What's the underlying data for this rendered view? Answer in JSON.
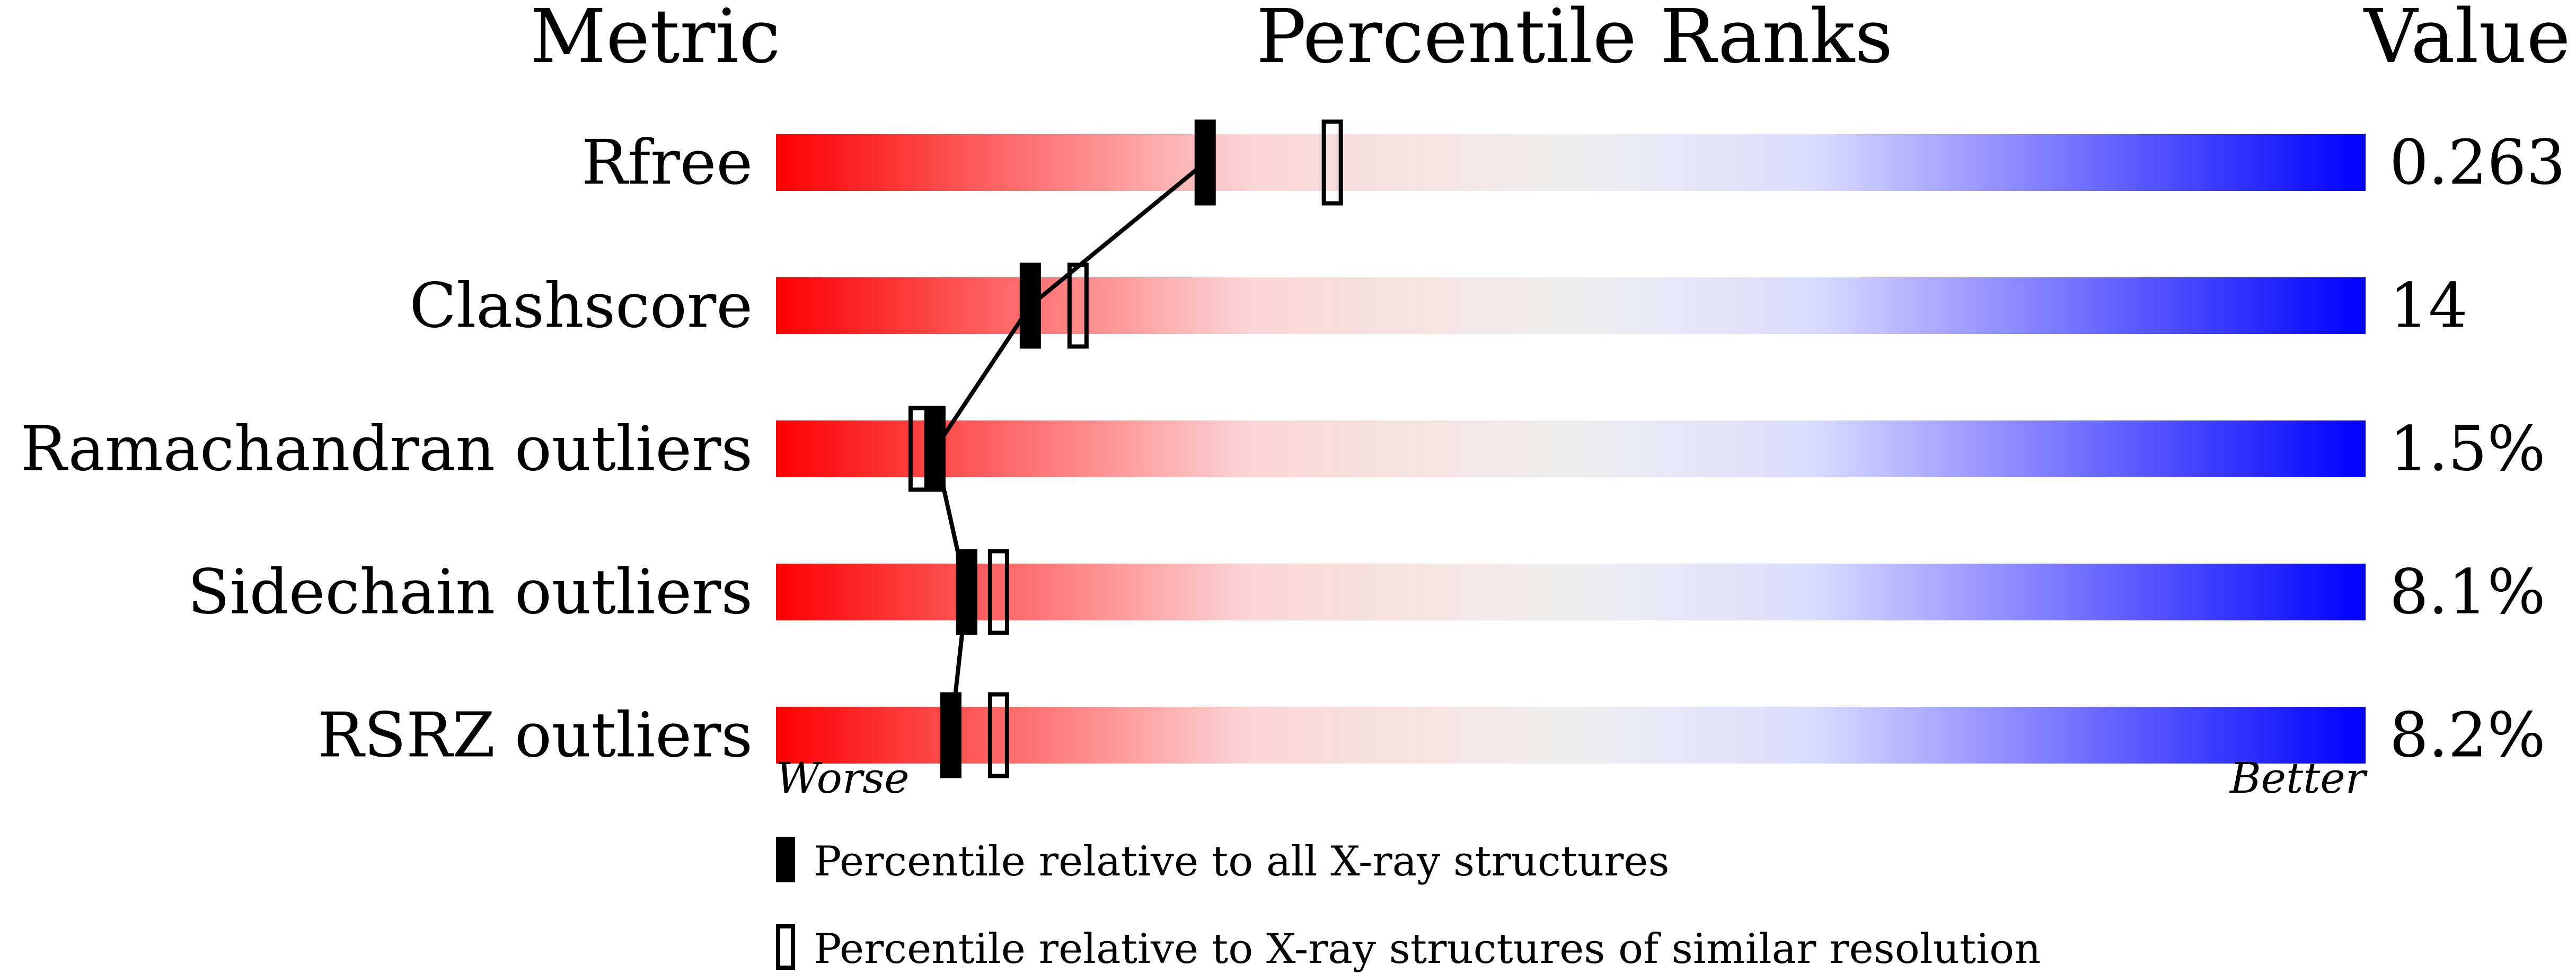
{
  "headers": {
    "metric": "Metric",
    "percentile": "Percentile Ranks",
    "value": "Value"
  },
  "chart_data": {
    "type": "percentile-bar",
    "xlim": [
      0,
      100
    ],
    "axis_left_label": "Worse",
    "axis_right_label": "Better",
    "gradient_colors": [
      "#ff0000",
      "#ffdddd",
      "#eeeeee",
      "#ddddff",
      "#0000ff"
    ],
    "rows": [
      {
        "metric": "Rfree",
        "value": "0.263",
        "percentile_all": 27,
        "percentile_similar": 35
      },
      {
        "metric": "Clashscore",
        "value": "14",
        "percentile_all": 16,
        "percentile_similar": 19
      },
      {
        "metric": "Ramachandran outliers",
        "value": "1.5%",
        "percentile_all": 10,
        "percentile_similar": 9
      },
      {
        "metric": "Sidechain outliers",
        "value": "8.1%",
        "percentile_all": 12,
        "percentile_similar": 14
      },
      {
        "metric": "RSRZ outliers",
        "value": "8.2%",
        "percentile_all": 11,
        "percentile_similar": 14
      }
    ],
    "legend": [
      {
        "marker": "filled",
        "label": "Percentile relative to all X-ray structures"
      },
      {
        "marker": "open",
        "label": "Percentile relative to X-ray structures of similar resolution"
      }
    ]
  }
}
